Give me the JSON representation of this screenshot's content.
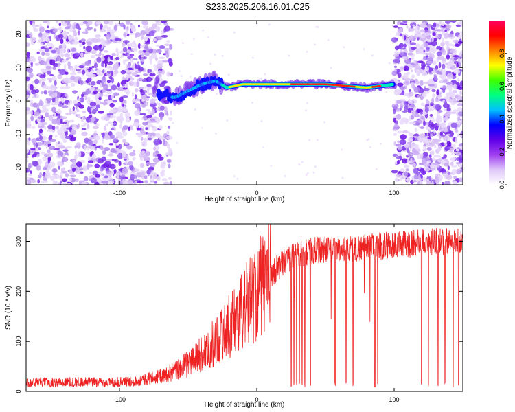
{
  "title": "S233.2025.206.16.01.C25",
  "chart_data": [
    {
      "type": "heatmap",
      "xlabel": "Height of straight line (km)",
      "ylabel": "Frequency (Hz)",
      "xlim": [
        -168,
        150
      ],
      "ylim": [
        -25,
        24
      ],
      "x_ticks": [
        -100,
        0,
        100
      ],
      "y_ticks": [
        -20,
        -10,
        0,
        10,
        20
      ],
      "colorbar": {
        "label": "Normalized spectral amplitude",
        "range": [
          0,
          1
        ],
        "ticks": [
          0.0,
          0.2,
          0.4,
          0.6,
          0.8
        ],
        "colors": [
          "#ffffff",
          "#e0c8f8",
          "#a040f0",
          "#6000e8",
          "#0000ff",
          "#00c0ff",
          "#00ff80",
          "#40ff00",
          "#ffff00",
          "#ff8000",
          "#ff0000",
          "#ff0060"
        ]
      },
      "signal_band": {
        "description": "strong ridge near 5 Hz",
        "points": [
          {
            "x": -72,
            "y": 2
          },
          {
            "x": -60,
            "y": 1
          },
          {
            "x": -50,
            "y": 3
          },
          {
            "x": -40,
            "y": 5
          },
          {
            "x": -30,
            "y": 6
          },
          {
            "x": -22,
            "y": 4
          },
          {
            "x": -10,
            "y": 5
          },
          {
            "x": 0,
            "y": 5
          },
          {
            "x": 20,
            "y": 5
          },
          {
            "x": 50,
            "y": 5
          },
          {
            "x": 80,
            "y": 4
          },
          {
            "x": 100,
            "y": 5
          }
        ]
      }
    },
    {
      "type": "line",
      "xlabel": "Height of straight line (km)",
      "ylabel": "SNR (10 * v/v)",
      "xlim": [
        -168,
        150
      ],
      "ylim": [
        0,
        335
      ],
      "x_ticks": [
        -100,
        0,
        100
      ],
      "y_ticks": [
        0,
        100,
        200,
        300
      ],
      "series": [
        {
          "color": "#ee2222",
          "x": [
            -168,
            -150,
            -130,
            -110,
            -90,
            -80,
            -70,
            -60,
            -50,
            -40,
            -30,
            -20,
            -10,
            0,
            10,
            20,
            30,
            40,
            50,
            60,
            70,
            80,
            90,
            100,
            110,
            120,
            130,
            140,
            150
          ],
          "values": [
            18,
            18,
            19,
            18,
            20,
            25,
            30,
            40,
            55,
            75,
            100,
            130,
            165,
            200,
            235,
            260,
            275,
            280,
            285,
            282,
            285,
            288,
            290,
            292,
            295,
            298,
            300,
            300,
            300
          ],
          "dropouts": [
            25,
            27,
            29,
            31,
            33,
            35,
            39,
            57,
            65,
            70,
            86,
            88,
            120,
            125,
            132,
            137,
            143,
            147
          ]
        }
      ]
    }
  ]
}
